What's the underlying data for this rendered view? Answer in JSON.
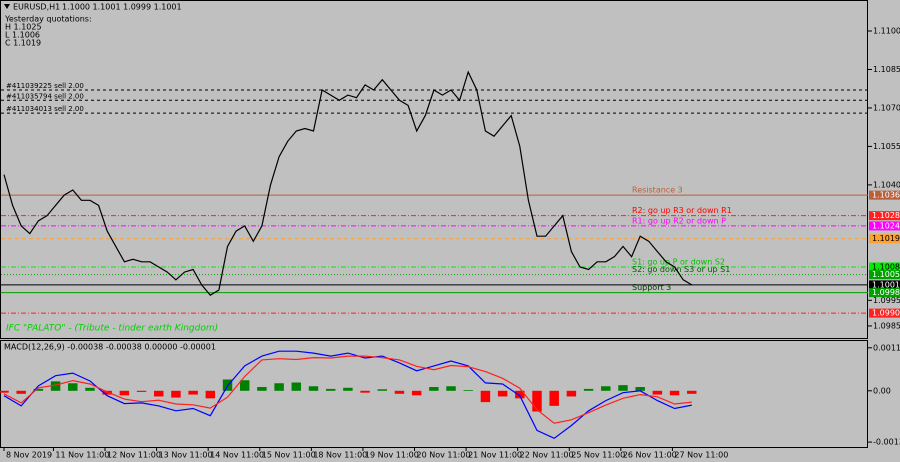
{
  "chart_data": [
    {
      "type": "line",
      "title": "EURUSD,H1",
      "quote": "1.1000 1.1001 1.0999 1.1001",
      "info": [
        "Yesterday quotations:",
        "H 1.1025",
        "L 1.1006",
        "C 1.1019"
      ],
      "watermark": "IFC \"PALATO\" - (Tribute - tinder earth Kingdom)",
      "color": "#000000",
      "x": [
        0,
        4,
        8,
        12,
        16,
        20,
        24,
        28,
        32,
        36,
        40,
        44,
        48,
        52,
        56,
        60,
        64,
        68,
        72,
        76,
        80,
        84,
        88,
        92,
        96,
        100,
        104,
        108,
        112,
        116,
        120,
        124,
        128,
        132,
        136,
        140,
        144,
        148,
        152,
        156,
        160,
        164,
        168,
        172,
        176,
        180,
        184,
        188,
        192,
        196,
        200,
        204,
        208,
        212,
        216,
        220,
        224,
        228,
        232,
        236,
        240,
        244,
        248,
        252,
        256,
        260,
        264,
        268,
        272,
        276,
        280,
        284,
        288,
        292,
        296,
        300,
        304,
        308,
        312,
        316,
        320
      ],
      "values": [
        1.1044,
        1.1032,
        1.1024,
        1.1021,
        1.1026,
        1.1028,
        1.1032,
        1.1036,
        1.1038,
        1.1034,
        1.1034,
        1.1032,
        1.1022,
        1.1016,
        1.101,
        1.1011,
        1.101,
        1.101,
        1.1008,
        1.1006,
        1.1003,
        1.1006,
        1.1007,
        1.1001,
        1.0997,
        1.0999,
        1.1016,
        1.1022,
        1.1024,
        1.1018,
        1.1024,
        1.104,
        1.1051,
        1.1057,
        1.1061,
        1.1062,
        1.1061,
        1.1077,
        1.1075,
        1.1073,
        1.1075,
        1.1074,
        1.1079,
        1.1077,
        1.1081,
        1.1077,
        1.1073,
        1.1071,
        1.1061,
        1.1067,
        1.1077,
        1.1075,
        1.1077,
        1.1073,
        1.1084,
        1.1077,
        1.1061,
        1.1059,
        1.1063,
        1.1067,
        1.1055,
        1.1034,
        1.102,
        1.102,
        1.1024,
        1.1028,
        1.1014,
        1.1008,
        1.1007,
        1.101,
        1.101,
        1.1012,
        1.1016,
        1.1012,
        1.102,
        1.1018,
        1.1014,
        1.101,
        1.1008,
        1.1003,
        1.1001
      ],
      "xlim": [
        0,
        402
      ],
      "xticks": [
        {
          "value": 0,
          "label": "8 Nov 2019"
        },
        {
          "value": 23,
          "label": "11 Nov 11:00"
        },
        {
          "value": 47,
          "label": "12 Nov 11:00"
        },
        {
          "value": 71,
          "label": "13 Nov 11:00"
        },
        {
          "value": 95,
          "label": "14 Nov 11:00"
        },
        {
          "value": 119,
          "label": "15 Nov 11:00"
        },
        {
          "value": 143,
          "label": "18 Nov 11:00"
        },
        {
          "value": 167,
          "label": "19 Nov 11:00"
        },
        {
          "value": 191,
          "label": "20 Nov 11:00"
        },
        {
          "value": 215,
          "label": "21 Nov 11:00"
        },
        {
          "value": 239,
          "label": "22 Nov 11:00"
        },
        {
          "value": 263,
          "label": "25 Nov 11:00"
        },
        {
          "value": 287,
          "label": "26 Nov 11:00"
        },
        {
          "value": 311,
          "label": "27 Nov 11:00"
        }
      ],
      "ylim": [
        1.09803,
        1.11117
      ],
      "yticks": [
        {
          "value": 1.11,
          "label": "1.1100"
        },
        1.1085,
        {
          "value": 1.107,
          "label": "1.1070"
        },
        1.1055,
        {
          "value": 1.104,
          "label": "1.1040"
        },
        1.0995,
        1.0985
      ],
      "orders": [
        {
          "value": 1.1077,
          "text": "#411039225 sell 2.00"
        },
        {
          "value": 1.1073,
          "text": "#411035794 sell 2.00"
        },
        {
          "value": 1.1068,
          "text": "#411034013 sell 2.00"
        }
      ],
      "levels": [
        {
          "value": 1.1036,
          "color": "#b8603c",
          "style": "solid",
          "text": "Resistance 3",
          "text_color": "#b8603c"
        },
        {
          "value": 1.1028,
          "color": "#ff2020",
          "style": "dashdot",
          "text": "R2: go up R3 or down R1",
          "text_color": "#ff0000"
        },
        {
          "value": 1.1024,
          "color": "#ff00ff",
          "style": "dashdot",
          "text": "R1: go up R2 or down P",
          "text_color": "#ff00ff"
        },
        {
          "value": 1.1019,
          "color": "#ffa030",
          "style": "dash"
        },
        {
          "value": 1.1008,
          "color": "#00ee00",
          "style": "dashdot",
          "text": "S1: go up P or down S2",
          "text_color": "#00c000"
        },
        {
          "value": 1.1005,
          "color": "#00a000",
          "style": "dot",
          "text": "S2: go down S3 or up S1",
          "text_color": "#006000"
        },
        {
          "value": 1.1001,
          "color": "#000000",
          "style": "solid"
        },
        {
          "value": 1.0998,
          "color": "#00a000",
          "style": "solid",
          "text": "Support 3",
          "text_color": "#004000"
        },
        {
          "value": 1.099,
          "label": "1.0990",
          "color": "#ff2020",
          "style": "dashdot"
        }
      ]
    },
    {
      "type": "macd",
      "title": "MACD(12,26,9) -0.00038 -0.00038 0.00000 -0.00001",
      "x": [
        0,
        8,
        16,
        24,
        32,
        40,
        48,
        56,
        64,
        72,
        80,
        88,
        96,
        104,
        112,
        120,
        128,
        136,
        144,
        152,
        160,
        168,
        176,
        184,
        192,
        200,
        208,
        216,
        224,
        232,
        240,
        248,
        256,
        264,
        272,
        280,
        288,
        296,
        304,
        312,
        320
      ],
      "histogram": {
        "up_color": "#008000",
        "down_color": "#ff0000",
        "values": [
          -5e-05,
          -8e-05,
          5e-05,
          0.00025,
          0.0002,
          8e-05,
          -0.0001,
          -0.00012,
          -3e-05,
          -0.00015,
          -0.00018,
          -0.0001,
          -0.0002,
          0.0003,
          0.00028,
          0.0001,
          0.0002,
          0.00022,
          0.00012,
          5e-05,
          8e-05,
          -5e-05,
          4e-05,
          -8e-05,
          -0.00012,
          0.0001,
          0.00012,
          2e-05,
          -0.0003,
          -0.00015,
          -0.0002,
          -0.00055,
          -0.0004,
          -0.00015,
          5e-05,
          0.00012,
          0.00015,
          0.0001,
          -0.0001,
          -0.00012,
          -8e-05
        ]
      },
      "lines": [
        {
          "color": "#0000ff",
          "values": [
            -0.00013,
            -0.0004,
            0.00013,
            0.0004,
            0.00047,
            0.00026,
            -0.00013,
            -0.00034,
            -0.00032,
            -0.0004,
            -0.00053,
            -0.00047,
            -0.00066,
            0.00013,
            0.00066,
            0.00092,
            0.00105,
            0.00105,
            0.001,
            0.00092,
            0.001,
            0.00087,
            0.00092,
            0.00074,
            0.00053,
            0.00066,
            0.00079,
            0.00066,
            0.00021,
            0.00018,
            -0.00013,
            -0.00105,
            -0.00126,
            -0.00092,
            -0.00053,
            -0.00026,
            -5e-05,
            0,
            -0.00026,
            -0.00047,
            -0.00038
          ]
        },
        {
          "color": "#ff2020",
          "values": [
            -8e-05,
            -0.00032,
            8e-05,
            0.00015,
            0.00027,
            0.00018,
            -3e-05,
            -0.00022,
            -0.00029,
            -0.00025,
            -0.00035,
            -0.00037,
            -0.00046,
            -0.00017,
            0.00038,
            0.00082,
            0.00085,
            0.00083,
            0.00088,
            0.00087,
            0.00092,
            0.00092,
            0.00088,
            0.00082,
            0.00065,
            0.00056,
            0.00067,
            0.00064,
            0.00051,
            0.00033,
            7e-05,
            -0.0005,
            -0.00086,
            -0.00077,
            -0.00058,
            -0.00038,
            -0.0002,
            -0.0001,
            -0.00016,
            -0.00035,
            -0.0003
          ]
        }
      ],
      "xlim": [
        0,
        402
      ],
      "ylim": [
        -0.00149,
        0.00132
      ],
      "yticks": [
        0.00114,
        {
          "value": 0,
          "label": "0.00"
        },
        -0.00136
      ]
    }
  ]
}
